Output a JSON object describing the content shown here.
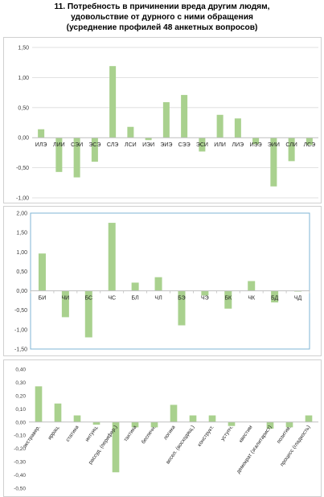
{
  "title_lines": [
    "11. Потребность в причинении вреда другим людям,",
    "удовольствие от дурного с ними обращения",
    "(усреднение профилей 48 анкетных вопросов)"
  ],
  "colors": {
    "bar": "#a9d18e",
    "grid": "#d9d9d9",
    "axis": "#bfbfbf",
    "plot_border_2": "#7fb4d6"
  },
  "chart_data": [
    {
      "type": "bar",
      "categories": [
        "ИЛЭ",
        "ЛИИ",
        "СЭИ",
        "ЭСЭ",
        "СЛЭ",
        "ЛСИ",
        "ИЭИ",
        "ЭИЭ",
        "СЭЭ",
        "ЭСИ",
        "ИЛИ",
        "ЛИЭ",
        "ИЭЭ",
        "ЭИИ",
        "СЛИ",
        "ЛСЭ"
      ],
      "values": [
        0.14,
        -0.57,
        -0.66,
        -0.4,
        1.19,
        0.18,
        -0.04,
        0.59,
        0.71,
        -0.23,
        0.38,
        0.32,
        -0.11,
        -0.81,
        -0.39,
        -0.12
      ],
      "ylim": [
        -1.0,
        1.5
      ],
      "yticks": [
        "1,50",
        "1,00",
        "0,50",
        "0,00",
        "-0,50",
        "-1,00"
      ],
      "ytick_values": [
        1.5,
        1.0,
        0.5,
        0.0,
        -0.5,
        -1.0
      ],
      "grid": true
    },
    {
      "type": "bar",
      "categories": [
        "БИ",
        "ЧИ",
        "БС",
        "ЧС",
        "БЛ",
        "ЧЛ",
        "БЭ",
        "ЧЭ",
        "БК",
        "ЧК",
        "БД",
        "ЧД"
      ],
      "values": [
        0.96,
        -0.68,
        -1.2,
        1.75,
        0.21,
        0.35,
        -0.89,
        -0.12,
        -0.46,
        0.25,
        -0.3,
        -0.02
      ],
      "ylim": [
        -1.5,
        2.0
      ],
      "yticks": [
        "2,00",
        "1,50",
        "1,00",
        "0,50",
        "0,00",
        "-0,50",
        "-1,00",
        "-1,50"
      ],
      "ytick_values": [
        2.0,
        1.5,
        1.0,
        0.5,
        0.0,
        -0.5,
        -1.0,
        -1.5
      ],
      "grid": false
    },
    {
      "type": "bar",
      "categories": [
        "экстравер.",
        "иррац.",
        "статика",
        "интуиц.",
        "рассуд. (перифер.)",
        "тактика",
        "беспечн.",
        "логика",
        "весел. (восходящ.)",
        "конструкт.",
        "уступч.",
        "квестим",
        "демократ (эгалитарист)",
        "позитив.",
        "процесс (гладкость)"
      ],
      "values": [
        0.27,
        0.14,
        0.05,
        -0.02,
        -0.38,
        -0.04,
        -0.04,
        0.13,
        0.05,
        0.05,
        -0.03,
        0.0,
        -0.05,
        -0.04,
        0.05
      ],
      "ylim": [
        -0.5,
        0.4
      ],
      "yticks": [
        "0,40",
        "0,30",
        "0,20",
        "0,10",
        "0,00",
        "-0,10",
        "-0,20",
        "-0,30",
        "-0,40",
        "-0,50"
      ],
      "ytick_values": [
        0.4,
        0.3,
        0.2,
        0.1,
        0.0,
        -0.1,
        -0.2,
        -0.3,
        -0.4,
        -0.5
      ],
      "grid": false
    }
  ]
}
